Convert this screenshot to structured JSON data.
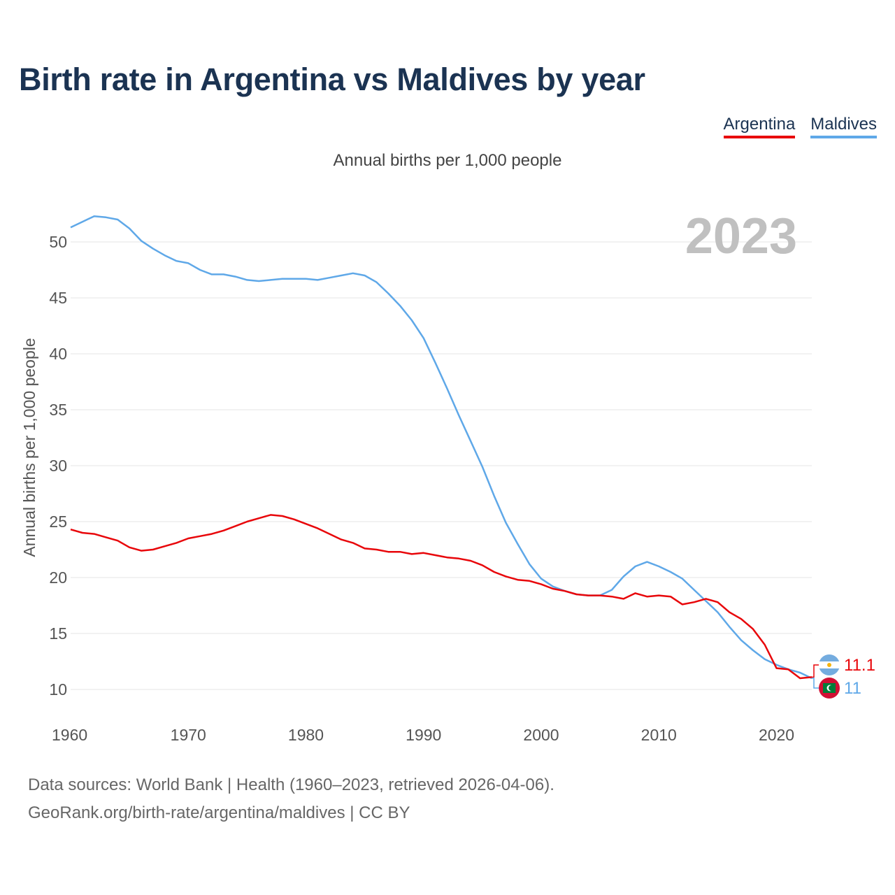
{
  "page": {
    "title": "Birth rate in Argentina vs Maldives by year",
    "subtitle": "Annual births per 1,000 people",
    "footer_sources": "Data sources: World Bank | Health (1960–2023, retrieved 2026-04-06).",
    "footer_link": "GeoRank.org/birth-rate/argentina/maldives | CC BY"
  },
  "legend": [
    {
      "name": "Argentina",
      "color": "#e8060a"
    },
    {
      "name": "Maldives",
      "color": "#5fa8e8"
    }
  ],
  "chart_data": {
    "type": "line",
    "title": "Birth rate in Argentina vs Maldives by year",
    "subtitle": "Annual births per 1,000 people",
    "ylabel": "Annual births per 1,000 people",
    "xlabel": "",
    "year_label": "2023",
    "xlim": [
      1960,
      2023
    ],
    "ylim": [
      10,
      50
    ],
    "x_ticks": [
      1960,
      1970,
      1980,
      1990,
      2000,
      2010,
      2020
    ],
    "y_ticks": [
      10,
      15,
      20,
      25,
      30,
      35,
      40,
      45,
      50
    ],
    "grid": true,
    "legend_position": "top-right",
    "x": [
      1960,
      1961,
      1962,
      1963,
      1964,
      1965,
      1966,
      1967,
      1968,
      1969,
      1970,
      1971,
      1972,
      1973,
      1974,
      1975,
      1976,
      1977,
      1978,
      1979,
      1980,
      1981,
      1982,
      1983,
      1984,
      1985,
      1986,
      1987,
      1988,
      1989,
      1990,
      1991,
      1992,
      1993,
      1994,
      1995,
      1996,
      1997,
      1998,
      1999,
      2000,
      2001,
      2002,
      2003,
      2004,
      2005,
      2006,
      2007,
      2008,
      2009,
      2010,
      2011,
      2012,
      2013,
      2014,
      2015,
      2016,
      2017,
      2018,
      2019,
      2020,
      2021,
      2022,
      2023
    ],
    "series": [
      {
        "name": "Argentina",
        "color": "#e8060a",
        "end_label": "11.1",
        "values": [
          24.3,
          24.0,
          23.9,
          23.6,
          23.3,
          22.7,
          22.4,
          22.5,
          22.8,
          23.1,
          23.5,
          23.7,
          23.9,
          24.2,
          24.6,
          25.0,
          25.3,
          25.6,
          25.5,
          25.2,
          24.8,
          24.4,
          23.9,
          23.4,
          23.1,
          22.6,
          22.5,
          22.3,
          22.3,
          22.1,
          22.2,
          22.0,
          21.8,
          21.7,
          21.5,
          21.1,
          20.5,
          20.1,
          19.8,
          19.7,
          19.4,
          19.0,
          18.8,
          18.5,
          18.4,
          18.4,
          18.3,
          18.1,
          18.6,
          18.3,
          18.4,
          18.3,
          17.6,
          17.8,
          18.1,
          17.8,
          16.9,
          16.3,
          15.4,
          14.0,
          11.9,
          11.8,
          11.0,
          11.1
        ]
      },
      {
        "name": "Maldives",
        "color": "#5fa8e8",
        "end_label": "11",
        "values": [
          51.3,
          51.8,
          52.3,
          52.2,
          52.0,
          51.2,
          50.1,
          49.4,
          48.8,
          48.3,
          48.1,
          47.5,
          47.1,
          47.1,
          46.9,
          46.6,
          46.5,
          46.6,
          46.7,
          46.7,
          46.7,
          46.6,
          46.8,
          47.0,
          47.2,
          47.0,
          46.4,
          45.4,
          44.3,
          43.0,
          41.4,
          39.2,
          36.9,
          34.5,
          32.2,
          29.9,
          27.3,
          24.9,
          23.0,
          21.2,
          19.9,
          19.2,
          18.8,
          18.5,
          18.4,
          18.4,
          18.9,
          20.1,
          21.0,
          21.4,
          21.0,
          20.5,
          19.9,
          18.9,
          17.9,
          16.9,
          15.6,
          14.4,
          13.5,
          12.7,
          12.2,
          11.8,
          11.5,
          11.0
        ]
      }
    ]
  }
}
